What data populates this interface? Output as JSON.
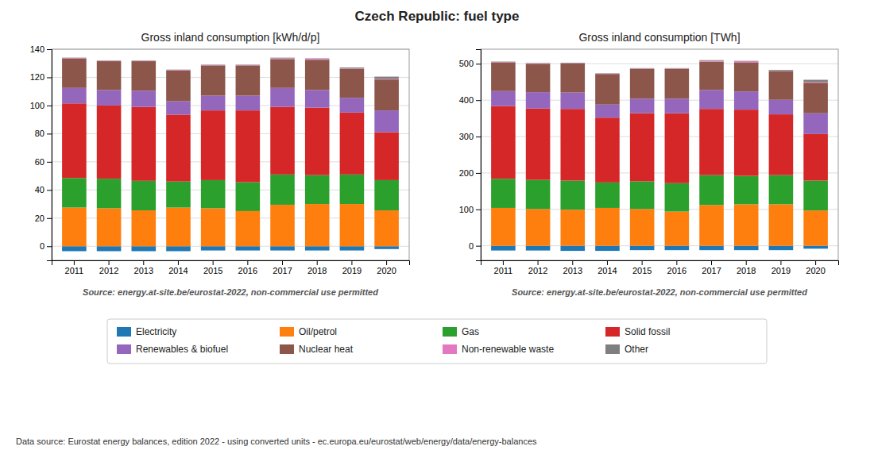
{
  "chart_data": [
    {
      "type": "bar",
      "stacked": true,
      "title": "Czech Republic: fuel type",
      "subtitle": "Gross inland consumption [kWh/d/p]",
      "annotations": [
        "Source: energy.at-site.be/eurostat-2022, non-commercial use permitted",
        "Data source: Eurostat energy balances, edition 2022 - using converted units - ec.europa.eu/eurostat/web/energy/data/energy-balances"
      ],
      "categories": [
        "2011",
        "2012",
        "2013",
        "2014",
        "2015",
        "2016",
        "2017",
        "2018",
        "2019",
        "2020"
      ],
      "series": [
        {
          "name": "Electricity",
          "color": "#1f77b4",
          "values": [
            -3.5,
            -3.5,
            -3.5,
            -3.5,
            -3.0,
            -3.0,
            -3.0,
            -3.0,
            -3.0,
            -2.0
          ]
        },
        {
          "name": "Oil/petrol",
          "color": "#ff7f0e",
          "values": [
            27.5,
            27.0,
            25.5,
            27.5,
            27.0,
            25.0,
            29.5,
            30.0,
            30.0,
            25.5
          ]
        },
        {
          "name": "Gas",
          "color": "#2ca02c",
          "values": [
            21.0,
            21.0,
            21.0,
            18.5,
            20.0,
            20.5,
            21.5,
            20.5,
            21.0,
            21.5
          ]
        },
        {
          "name": "Solid fossil",
          "color": "#d62728",
          "values": [
            53.0,
            52.0,
            52.5,
            47.5,
            49.5,
            51.0,
            48.0,
            48.0,
            44.0,
            34.0
          ]
        },
        {
          "name": "Renewables & biofuel",
          "color": "#9467bd",
          "values": [
            11.0,
            11.0,
            11.5,
            9.5,
            10.5,
            10.5,
            13.5,
            12.5,
            10.5,
            15.5
          ]
        },
        {
          "name": "Nuclear heat",
          "color": "#8c564b",
          "values": [
            21.0,
            20.5,
            21.0,
            22.0,
            21.5,
            21.5,
            20.5,
            21.5,
            20.5,
            22.0
          ]
        },
        {
          "name": "Non-renewable waste",
          "color": "#e377c2",
          "values": [
            0.3,
            0.3,
            0.3,
            0.3,
            0.2,
            0.2,
            0.5,
            0.7,
            0.3,
            0.5
          ]
        },
        {
          "name": "Other",
          "color": "#7f7f7f",
          "values": [
            0.2,
            0.2,
            0.2,
            0.2,
            0.3,
            0.3,
            0.5,
            0.3,
            0.7,
            1.5
          ]
        }
      ],
      "ylim": [
        -10,
        140
      ],
      "yticks": [
        0,
        20,
        40,
        60,
        80,
        100,
        120,
        140
      ],
      "grid": true,
      "legend": "bottom"
    },
    {
      "type": "bar",
      "stacked": true,
      "subtitle": "Gross inland consumption [TWh]",
      "annotations": [
        "Source: energy.at-site.be/eurostat-2022, non-commercial use permitted"
      ],
      "categories": [
        "2011",
        "2012",
        "2013",
        "2014",
        "2015",
        "2016",
        "2017",
        "2018",
        "2019",
        "2020"
      ],
      "series": [
        {
          "name": "Electricity",
          "color": "#1f77b4",
          "values": [
            -13,
            -13,
            -14,
            -14,
            -12,
            -12,
            -12,
            -12,
            -12,
            -8
          ]
        },
        {
          "name": "Oil/petrol",
          "color": "#ff7f0e",
          "values": [
            104,
            101,
            99,
            104,
            101,
            94,
            112,
            114,
            114,
            97
          ]
        },
        {
          "name": "Gas",
          "color": "#2ca02c",
          "values": [
            80,
            80,
            80,
            70,
            76,
            78,
            82,
            78,
            80,
            82
          ]
        },
        {
          "name": "Solid fossil",
          "color": "#d62728",
          "values": [
            200,
            196,
            197,
            178,
            187,
            192,
            182,
            182,
            167,
            128
          ]
        },
        {
          "name": "Renewables & biofuel",
          "color": "#9467bd",
          "values": [
            41,
            45,
            45,
            36,
            40,
            40,
            52,
            50,
            40,
            57
          ]
        },
        {
          "name": "Nuclear heat",
          "color": "#8c564b",
          "values": [
            79,
            78,
            80,
            84,
            82,
            82,
            78,
            80,
            78,
            84
          ]
        },
        {
          "name": "Non-renewable waste",
          "color": "#e377c2",
          "values": [
            1,
            1,
            1,
            1,
            1,
            1,
            2,
            3,
            1,
            2
          ]
        },
        {
          "name": "Other",
          "color": "#7f7f7f",
          "values": [
            1,
            1,
            1,
            1,
            1,
            1,
            2,
            1,
            3,
            6
          ]
        }
      ],
      "ylim": [
        -40,
        540
      ],
      "yticks": [
        0,
        100,
        200,
        300,
        400,
        500
      ],
      "grid": true
    }
  ]
}
